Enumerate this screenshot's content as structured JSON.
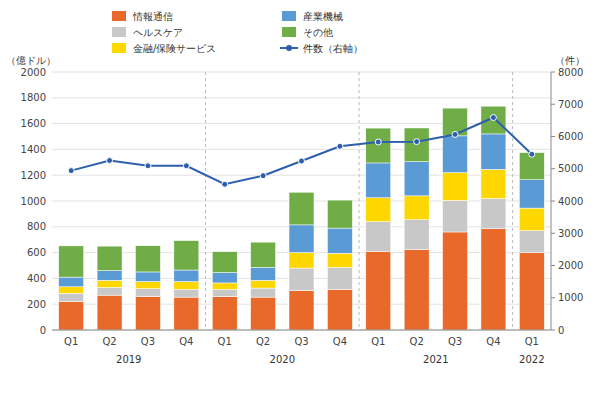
{
  "chart_data": {
    "type": "bar",
    "stacked": true,
    "categories": [
      "Q1",
      "Q2",
      "Q3",
      "Q4",
      "Q1",
      "Q2",
      "Q3",
      "Q4",
      "Q1",
      "Q2",
      "Q3",
      "Q4",
      "Q1"
    ],
    "category_groups": [
      {
        "label": "2019",
        "start": 0,
        "end": 3
      },
      {
        "label": "2020",
        "start": 4,
        "end": 7
      },
      {
        "label": "2021",
        "start": 8,
        "end": 11
      },
      {
        "label": "2022",
        "start": 12,
        "end": 12
      }
    ],
    "series": [
      {
        "name": "情報通信",
        "color": "#E8692A",
        "values": [
          220,
          270,
          260,
          255,
          260,
          255,
          305,
          315,
          610,
          625,
          760,
          785,
          600
        ]
      },
      {
        "name": "ヘルスケア",
        "color": "#C8C8C8",
        "values": [
          65,
          60,
          60,
          60,
          55,
          70,
          175,
          170,
          230,
          230,
          245,
          235,
          170
        ]
      },
      {
        "name": "金融/保険サービス",
        "color": "#FFD700",
        "values": [
          50,
          55,
          55,
          60,
          50,
          60,
          120,
          110,
          185,
          185,
          215,
          225,
          175
        ]
      },
      {
        "name": "産業機械",
        "color": "#5B9BD5",
        "values": [
          75,
          75,
          75,
          90,
          80,
          100,
          215,
          195,
          270,
          265,
          285,
          275,
          220
        ]
      },
      {
        "name": "その他",
        "color": "#70AD47",
        "values": [
          242,
          190,
          203,
          228,
          162,
          196,
          253,
          217,
          270,
          261,
          215,
          215,
          210
        ]
      },
      {
        "name": "件数（右軸）",
        "type": "line",
        "axis": "y2",
        "color": "#2E5FAD",
        "marker": "circle",
        "values": [
          4942,
          5256,
          5092,
          5093,
          4519,
          4785,
          5240,
          5697,
          5830,
          5841,
          6064,
          6589,
          5451
        ]
      }
    ],
    "ylabel": "（億ドル）",
    "y2label": "（件）",
    "ylim": [
      0,
      2000
    ],
    "yticks": [
      0,
      200,
      400,
      600,
      800,
      1000,
      1200,
      1400,
      1600,
      1800,
      2000
    ],
    "y2lim": [
      0,
      8000
    ],
    "y2ticks": [
      0,
      1000,
      2000,
      3000,
      4000,
      5000,
      6000,
      7000,
      8000
    ],
    "grid": true,
    "legend": "top"
  }
}
